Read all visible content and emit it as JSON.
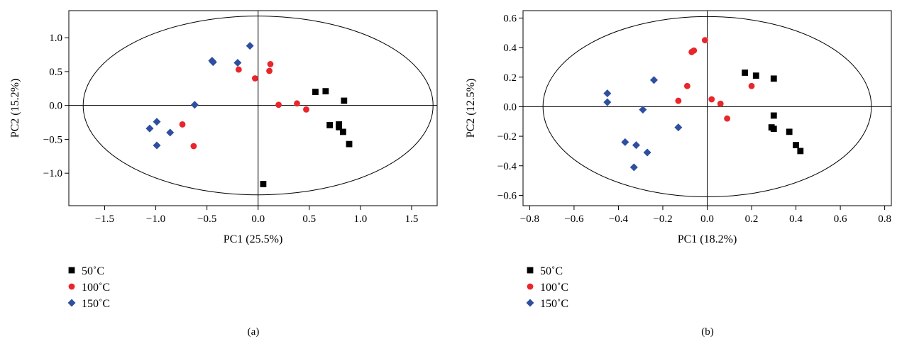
{
  "figure": {
    "legend_labels": [
      "50˚C",
      "100˚C",
      "150˚C"
    ],
    "series_styles": [
      {
        "color": "#000000",
        "marker": "square"
      },
      {
        "color": "#e8262b",
        "marker": "circle"
      },
      {
        "color": "#2e4fa0",
        "marker": "diamond"
      }
    ]
  },
  "chart_data": [
    {
      "type": "scatter",
      "panel_label": "(a)",
      "xlabel": "PC1 (25.5%)",
      "ylabel": "PC2 (15.2%)",
      "xlim": [
        -1.85,
        1.75
      ],
      "ylim": [
        -1.48,
        1.4
      ],
      "xticks": [
        -1.5,
        -1.0,
        -0.5,
        0.0,
        0.5,
        1.0,
        1.5
      ],
      "xtick_labels": [
        "−1.5",
        "−1.0",
        "−0.5",
        "0.0",
        "0.5",
        "1.0",
        "1.5"
      ],
      "yticks": [
        -1.0,
        -0.5,
        0.0,
        0.5,
        1.0
      ],
      "ytick_labels": [
        "−1.0",
        "−0.5",
        "0.0",
        "0.5",
        "1.0"
      ],
      "ellipse": {
        "rx": 1.71,
        "ry": 1.32
      },
      "series": [
        {
          "name": "50˚C",
          "points": [
            [
              0.56,
              0.2
            ],
            [
              0.66,
              0.21
            ],
            [
              0.84,
              0.07
            ],
            [
              0.7,
              -0.29
            ],
            [
              0.79,
              -0.28
            ],
            [
              0.79,
              -0.32
            ],
            [
              0.83,
              -0.39
            ],
            [
              0.89,
              -0.57
            ],
            [
              0.05,
              -1.16
            ]
          ]
        },
        {
          "name": "100˚C",
          "points": [
            [
              -0.19,
              0.53
            ],
            [
              -0.03,
              0.4
            ],
            [
              0.11,
              0.51
            ],
            [
              0.12,
              0.61
            ],
            [
              0.2,
              0.01
            ],
            [
              0.38,
              0.03
            ],
            [
              0.47,
              -0.06
            ],
            [
              -0.74,
              -0.28
            ],
            [
              -0.63,
              -0.6
            ]
          ]
        },
        {
          "name": "150˚C",
          "points": [
            [
              -0.45,
              0.66
            ],
            [
              -0.44,
              0.64
            ],
            [
              -0.2,
              0.63
            ],
            [
              -0.08,
              0.88
            ],
            [
              -0.62,
              0.01
            ],
            [
              -0.99,
              -0.24
            ],
            [
              -1.06,
              -0.34
            ],
            [
              -0.86,
              -0.4
            ],
            [
              -0.99,
              -0.59
            ]
          ]
        }
      ]
    },
    {
      "type": "scatter",
      "panel_label": "(b)",
      "xlabel": "PC1 (18.2%)",
      "ylabel": "PC2 (12.5%)",
      "xlim": [
        -0.83,
        0.83
      ],
      "ylim": [
        -0.67,
        0.65
      ],
      "xticks": [
        -0.8,
        -0.6,
        -0.4,
        -0.2,
        0.0,
        0.2,
        0.4,
        0.6,
        0.8
      ],
      "xtick_labels": [
        "−0.8",
        "−0.6",
        "−0.4",
        "−0.2",
        "0.0",
        "0.2",
        "0.4",
        "0.6",
        "0.8"
      ],
      "yticks": [
        -0.6,
        -0.4,
        -0.2,
        0.0,
        0.2,
        0.4,
        0.6
      ],
      "ytick_labels": [
        "−0.6",
        "−0.4",
        "−0.2",
        "0.0",
        "0.2",
        "0.4",
        "0.6"
      ],
      "ellipse": {
        "rx": 0.74,
        "ry": 0.61
      },
      "series": [
        {
          "name": "50˚C",
          "points": [
            [
              0.17,
              0.23
            ],
            [
              0.22,
              0.21
            ],
            [
              0.3,
              0.19
            ],
            [
              0.3,
              -0.06
            ],
            [
              0.29,
              -0.14
            ],
            [
              0.3,
              -0.15
            ],
            [
              0.37,
              -0.17
            ],
            [
              0.4,
              -0.26
            ],
            [
              0.42,
              -0.3
            ]
          ]
        },
        {
          "name": "100˚C",
          "points": [
            [
              -0.06,
              0.38
            ],
            [
              -0.07,
              0.37
            ],
            [
              -0.01,
              0.45
            ],
            [
              -0.09,
              0.14
            ],
            [
              -0.13,
              0.04
            ],
            [
              0.02,
              0.05
            ],
            [
              0.2,
              0.14
            ],
            [
              0.06,
              0.02
            ],
            [
              0.09,
              -0.08
            ]
          ]
        },
        {
          "name": "150˚C",
          "points": [
            [
              -0.45,
              0.09
            ],
            [
              -0.45,
              0.03
            ],
            [
              -0.24,
              0.18
            ],
            [
              -0.29,
              -0.02
            ],
            [
              -0.13,
              -0.14
            ],
            [
              -0.37,
              -0.24
            ],
            [
              -0.32,
              -0.26
            ],
            [
              -0.27,
              -0.31
            ],
            [
              -0.33,
              -0.41
            ]
          ]
        }
      ]
    }
  ]
}
